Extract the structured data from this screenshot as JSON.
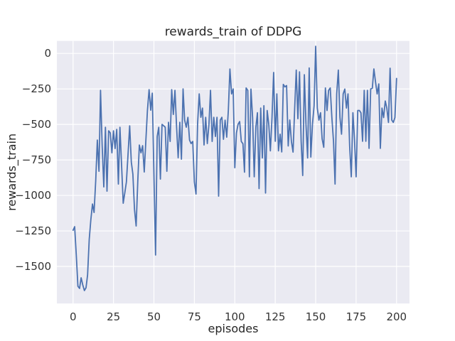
{
  "figure": {
    "title": "rewards_train of DDPG",
    "xlabel": "episodes",
    "ylabel": "rewards_train"
  },
  "chart_data": {
    "type": "line",
    "title": "rewards_train of DDPG",
    "xlabel": "episodes",
    "ylabel": "rewards_train",
    "grid": true,
    "legend": "none",
    "style": "seaborn-darkgrid",
    "colors": {
      "line": "#4C72B0",
      "plot_background": "#EAEAF2",
      "gridline": "#FFFFFF",
      "text": "#262626",
      "figure_background": "#FFFFFF"
    },
    "xlim": [
      -10,
      208
    ],
    "ylim": [
      -1761,
      88
    ],
    "x_ticks": [
      0,
      25,
      50,
      75,
      100,
      125,
      150,
      175,
      200
    ],
    "x_tick_labels": [
      "0",
      "25",
      "50",
      "75",
      "100",
      "125",
      "150",
      "175",
      "200"
    ],
    "y_ticks": [
      0,
      -250,
      -500,
      -750,
      -1000,
      -1250,
      -1500
    ],
    "y_tick_labels": [
      "0",
      "−250",
      "−500",
      "−750",
      "−1000",
      "−1250",
      "−1500"
    ],
    "x_start": 0,
    "x_step": 1,
    "series": [
      {
        "name": "rewards_train",
        "values": [
          -1245,
          -1220,
          -1420,
          -1640,
          -1655,
          -1580,
          -1630,
          -1670,
          -1650,
          -1560,
          -1310,
          -1170,
          -1060,
          -1120,
          -900,
          -610,
          -830,
          -260,
          -650,
          -940,
          -520,
          -970,
          -545,
          -560,
          -700,
          -545,
          -670,
          -535,
          -920,
          -520,
          -785,
          -1055,
          -980,
          -905,
          -710,
          -510,
          -765,
          -850,
          -1100,
          -1215,
          -900,
          -645,
          -700,
          -650,
          -835,
          -620,
          -400,
          -255,
          -400,
          -280,
          -850,
          -1420,
          -585,
          -520,
          -885,
          -500,
          -510,
          -520,
          -830,
          -485,
          -620,
          -255,
          -430,
          -260,
          -520,
          -735,
          -485,
          -745,
          -250,
          -470,
          -520,
          -450,
          -610,
          -635,
          -620,
          -905,
          -990,
          -500,
          -285,
          -450,
          -385,
          -645,
          -450,
          -635,
          -500,
          -260,
          -620,
          -450,
          -585,
          -450,
          -1005,
          -470,
          -450,
          -605,
          -470,
          -590,
          -400,
          -110,
          -285,
          -250,
          -805,
          -560,
          -500,
          -480,
          -620,
          -636,
          -836,
          -243,
          -260,
          -869,
          -251,
          -452,
          -869,
          -519,
          -418,
          -952,
          -385,
          -736,
          -368,
          -983,
          -402,
          -502,
          -686,
          -452,
          -134,
          -619,
          -285,
          -686,
          -569,
          -694,
          -218,
          -235,
          -226,
          -652,
          -469,
          -620,
          -695,
          -385,
          -117,
          -460,
          -130,
          -620,
          -860,
          -150,
          -502,
          -736,
          -102,
          -730,
          -500,
          -368,
          50,
          -385,
          -470,
          -418,
          -602,
          -661,
          -243,
          -402,
          -260,
          -243,
          -452,
          -619,
          -920,
          -285,
          -117,
          -452,
          -569,
          -285,
          -251,
          -385,
          -285,
          -652,
          -869,
          -418,
          -602,
          -869,
          -402,
          -402,
          -418,
          -619,
          -260,
          -619,
          -260,
          -669,
          -250,
          -245,
          -109,
          -200,
          -285,
          -215,
          -669,
          -385,
          -452,
          -335,
          -385,
          -486,
          -104,
          -469,
          -486,
          -452,
          -176
        ]
      }
    ]
  }
}
